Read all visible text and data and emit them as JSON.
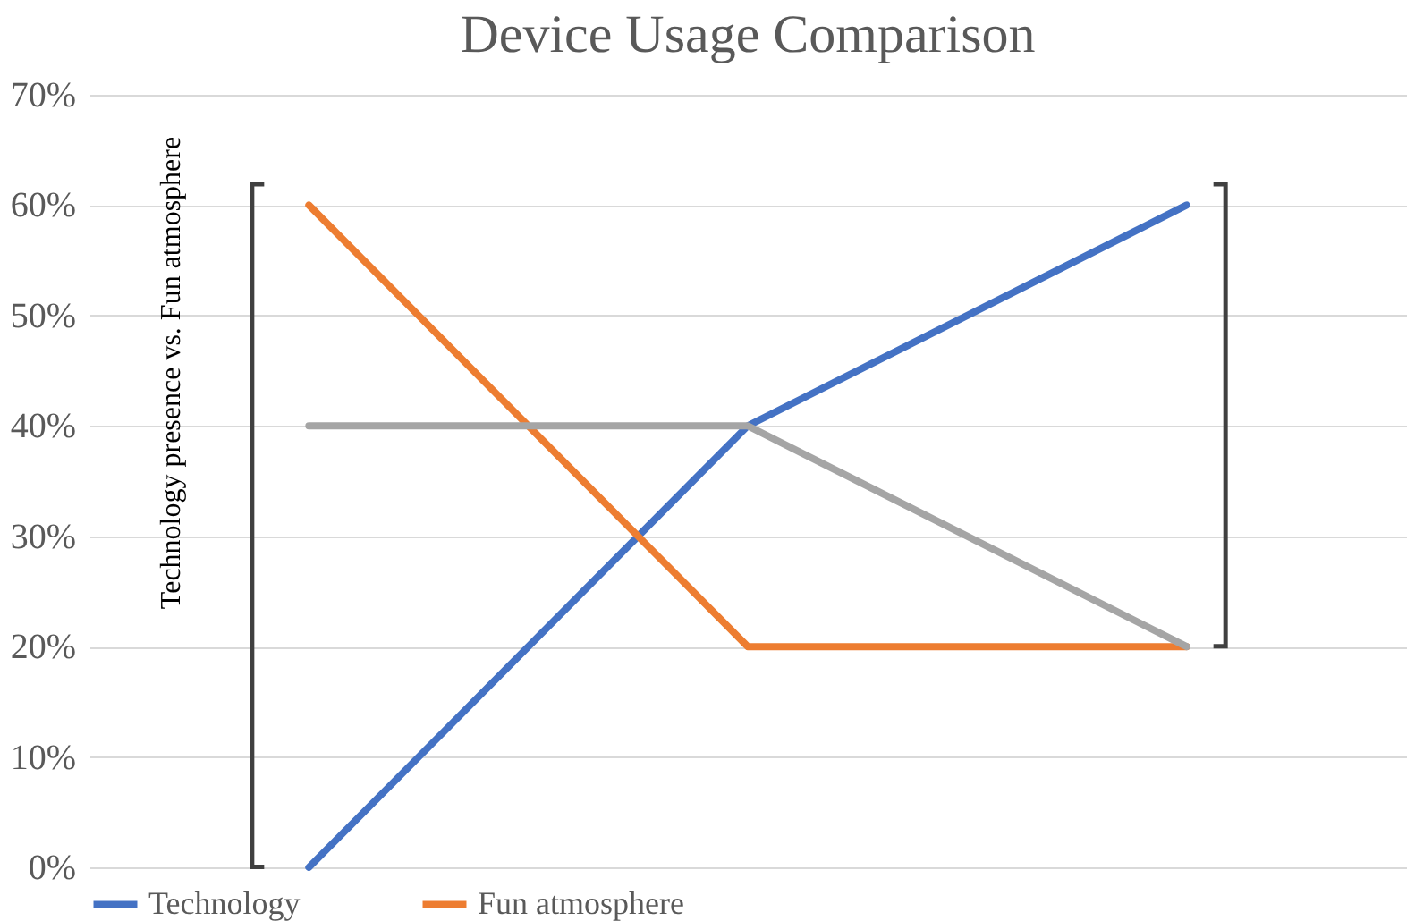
{
  "chart_data": {
    "type": "line",
    "title": "Device Usage Comparison",
    "ylabel": "Technology  presence vs. Fun atmosphere",
    "categories": [
      null,
      null,
      null
    ],
    "series": [
      {
        "name": "Technology",
        "color": "#4472c4",
        "values": [
          0,
          40,
          60
        ]
      },
      {
        "name": "Fun atmosphere",
        "color": "#ed7d31",
        "values": [
          60,
          20,
          20
        ]
      },
      {
        "color": "#a5a5a5",
        "values": [
          40,
          40,
          20
        ]
      }
    ],
    "ylim": [
      0,
      70
    ],
    "yticks": [
      {
        "value": 0,
        "label": "0%"
      },
      {
        "value": 10,
        "label": "10%"
      },
      {
        "value": 20,
        "label": "20%"
      },
      {
        "value": 30,
        "label": "30%"
      },
      {
        "value": 40,
        "label": "40%"
      },
      {
        "value": 50,
        "label": "50%"
      },
      {
        "value": 60,
        "label": "60%"
      },
      {
        "value": 70,
        "label": "70%"
      }
    ],
    "grid": "y",
    "legend": "bottom",
    "marker": "none",
    "line_style": "solid"
  }
}
